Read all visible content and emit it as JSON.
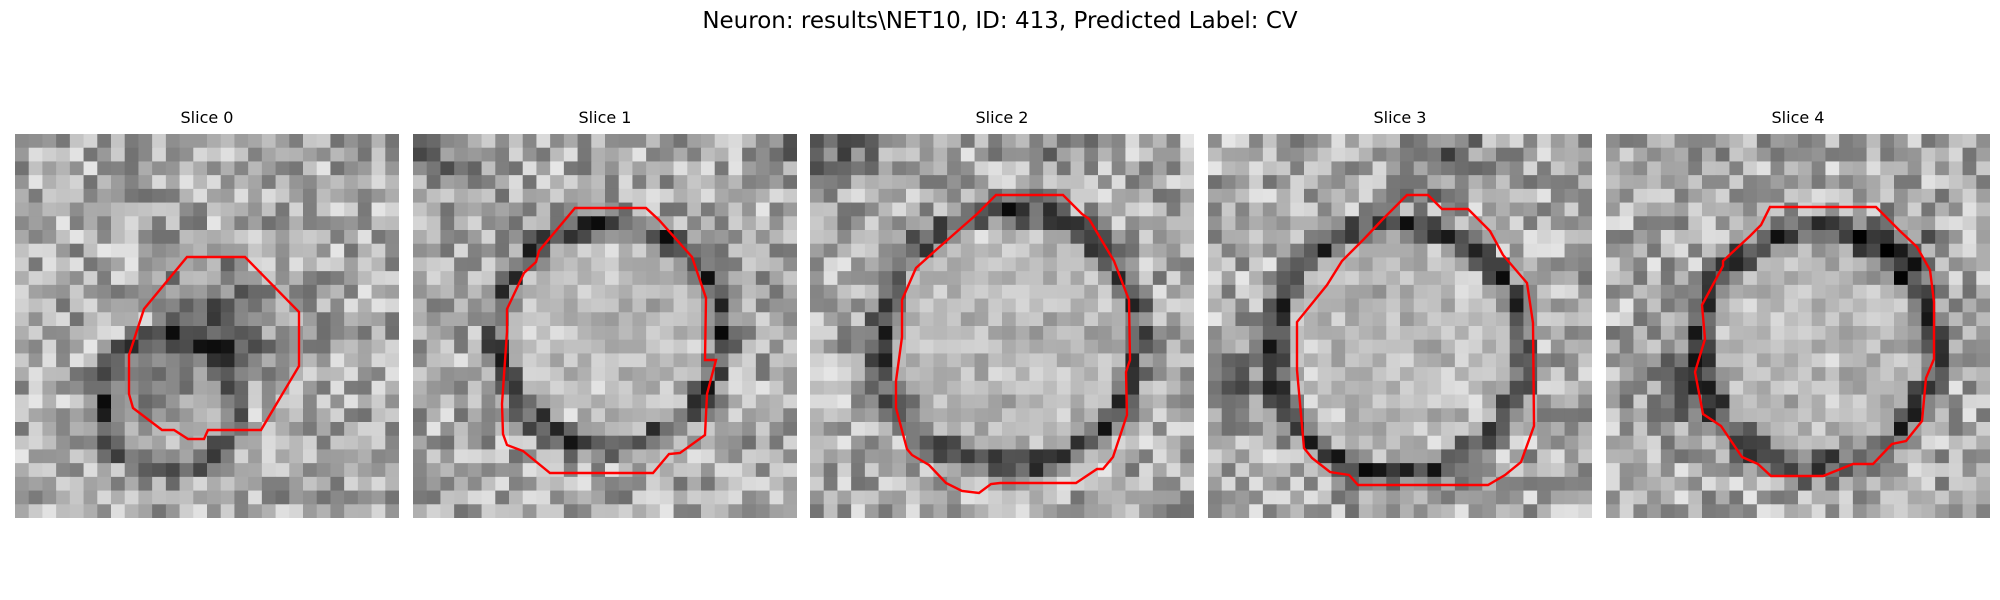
{
  "figure": {
    "title": "Neuron: results\\NET10, ID: 413, Predicted Label: CV"
  },
  "contour_color": "#ff0000",
  "slices": [
    {
      "title": "Slice 0"
    },
    {
      "title": "Slice 1"
    },
    {
      "title": "Slice 2"
    },
    {
      "title": "Slice 3"
    },
    {
      "title": "Slice 4"
    }
  ]
}
